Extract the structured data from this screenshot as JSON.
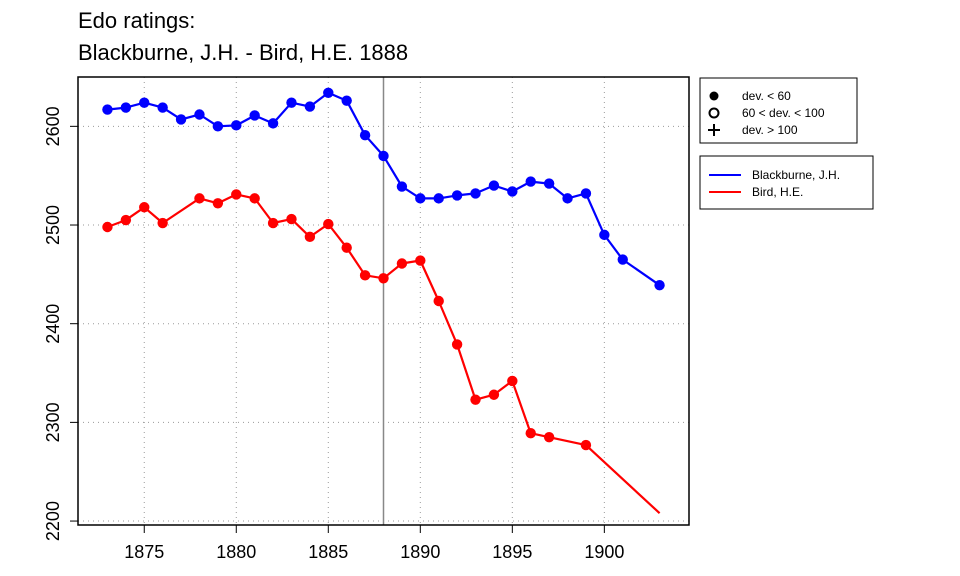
{
  "chart_data": {
    "type": "line",
    "title": "Edo ratings:",
    "subtitle": "Blackburne, J.H. - Bird, H.E. 1888",
    "xlabel": "",
    "ylabel": "",
    "xlim": [
      1871.4,
      1904.6
    ],
    "ylim": [
      2196,
      2650
    ],
    "x_ticks": [
      1875,
      1880,
      1885,
      1890,
      1895,
      1900
    ],
    "y_ticks": [
      2200,
      2300,
      2400,
      2500,
      2600
    ],
    "grid": true,
    "reference_line_x": 1888,
    "series": [
      {
        "name": "Blackburne, J.H.",
        "color": "#0000ff",
        "points": [
          {
            "x": 1873,
            "y": 2617,
            "marker": "dot"
          },
          {
            "x": 1874,
            "y": 2619,
            "marker": "dot"
          },
          {
            "x": 1875,
            "y": 2624,
            "marker": "dot"
          },
          {
            "x": 1876,
            "y": 2619,
            "marker": "dot"
          },
          {
            "x": 1877,
            "y": 2607,
            "marker": "dot"
          },
          {
            "x": 1878,
            "y": 2612,
            "marker": "dot"
          },
          {
            "x": 1879,
            "y": 2600,
            "marker": "dot"
          },
          {
            "x": 1880,
            "y": 2601,
            "marker": "dot"
          },
          {
            "x": 1881,
            "y": 2611,
            "marker": "dot"
          },
          {
            "x": 1882,
            "y": 2603,
            "marker": "dot"
          },
          {
            "x": 1883,
            "y": 2624,
            "marker": "dot"
          },
          {
            "x": 1884,
            "y": 2620,
            "marker": "dot"
          },
          {
            "x": 1885,
            "y": 2634,
            "marker": "dot"
          },
          {
            "x": 1886,
            "y": 2626,
            "marker": "dot"
          },
          {
            "x": 1887,
            "y": 2591,
            "marker": "dot"
          },
          {
            "x": 1888,
            "y": 2570,
            "marker": "dot"
          },
          {
            "x": 1889,
            "y": 2539,
            "marker": "dot"
          },
          {
            "x": 1890,
            "y": 2527,
            "marker": "dot"
          },
          {
            "x": 1891,
            "y": 2527,
            "marker": "dot"
          },
          {
            "x": 1892,
            "y": 2530,
            "marker": "dot"
          },
          {
            "x": 1893,
            "y": 2532,
            "marker": "dot"
          },
          {
            "x": 1894,
            "y": 2540,
            "marker": "dot"
          },
          {
            "x": 1895,
            "y": 2534,
            "marker": "dot"
          },
          {
            "x": 1896,
            "y": 2544,
            "marker": "dot"
          },
          {
            "x": 1897,
            "y": 2542,
            "marker": "dot"
          },
          {
            "x": 1898,
            "y": 2527,
            "marker": "dot"
          },
          {
            "x": 1899,
            "y": 2532,
            "marker": "dot"
          },
          {
            "x": 1900,
            "y": 2490,
            "marker": "dot"
          },
          {
            "x": 1901,
            "y": 2465,
            "marker": "dot"
          },
          {
            "x": 1903,
            "y": 2439,
            "marker": "dot"
          }
        ]
      },
      {
        "name": "Bird, H.E.",
        "color": "#ff0000",
        "points": [
          {
            "x": 1873,
            "y": 2498,
            "marker": "dot"
          },
          {
            "x": 1874,
            "y": 2505,
            "marker": "dot"
          },
          {
            "x": 1875,
            "y": 2518,
            "marker": "dot"
          },
          {
            "x": 1876,
            "y": 2502,
            "marker": "dot"
          },
          {
            "x": 1878,
            "y": 2527,
            "marker": "dot"
          },
          {
            "x": 1879,
            "y": 2522,
            "marker": "dot"
          },
          {
            "x": 1880,
            "y": 2531,
            "marker": "dot"
          },
          {
            "x": 1881,
            "y": 2527,
            "marker": "dot"
          },
          {
            "x": 1882,
            "y": 2502,
            "marker": "dot"
          },
          {
            "x": 1883,
            "y": 2506,
            "marker": "dot"
          },
          {
            "x": 1884,
            "y": 2488,
            "marker": "dot"
          },
          {
            "x": 1885,
            "y": 2501,
            "marker": "dot"
          },
          {
            "x": 1886,
            "y": 2477,
            "marker": "dot"
          },
          {
            "x": 1887,
            "y": 2449,
            "marker": "dot"
          },
          {
            "x": 1888,
            "y": 2446,
            "marker": "dot"
          },
          {
            "x": 1889,
            "y": 2461,
            "marker": "dot"
          },
          {
            "x": 1890,
            "y": 2464,
            "marker": "dot"
          },
          {
            "x": 1891,
            "y": 2423,
            "marker": "dot"
          },
          {
            "x": 1892,
            "y": 2379,
            "marker": "dot"
          },
          {
            "x": 1893,
            "y": 2323,
            "marker": "dot"
          },
          {
            "x": 1894,
            "y": 2328,
            "marker": "dot"
          },
          {
            "x": 1895,
            "y": 2342,
            "marker": "dot"
          },
          {
            "x": 1896,
            "y": 2289,
            "marker": "dot"
          },
          {
            "x": 1897,
            "y": 2285,
            "marker": "dot"
          },
          {
            "x": 1899,
            "y": 2277,
            "marker": "dot"
          },
          {
            "x": 1903,
            "y": 2208,
            "marker": "none"
          }
        ]
      }
    ],
    "legend_markers": {
      "placement": "right-top",
      "items": [
        {
          "symbol": "filled-circle",
          "label": "dev. < 60"
        },
        {
          "symbol": "open-circle",
          "label": "60 < dev. < 100"
        },
        {
          "symbol": "plus",
          "label": "dev. > 100"
        }
      ]
    },
    "legend_series": {
      "placement": "right",
      "items": [
        {
          "label": "Blackburne, J.H.",
          "color": "#0000ff"
        },
        {
          "label": "Bird, H.E.",
          "color": "#ff0000"
        }
      ]
    }
  }
}
